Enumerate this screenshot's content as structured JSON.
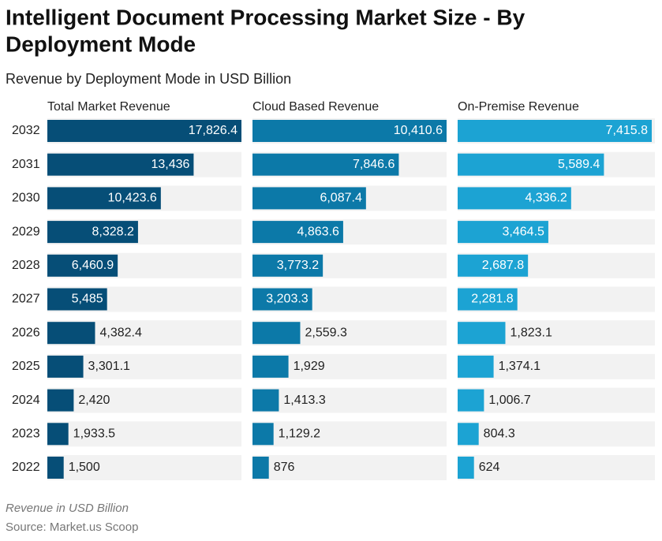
{
  "chart_data": {
    "type": "bar",
    "title": "Intelligent Document Processing Market Size - By Deployment Mode",
    "subtitle": "Revenue by Deployment Mode in USD Billion",
    "caption": "Revenue in USD Billion",
    "source": "Source: Market.us Scoop",
    "categories": [
      "2032",
      "2031",
      "2030",
      "2029",
      "2028",
      "2027",
      "2026",
      "2025",
      "2024",
      "2023",
      "2022"
    ],
    "series": [
      {
        "name": "Total Market Revenue",
        "color": "#064e77",
        "values": [
          17826.4,
          13436,
          10423.6,
          8328.2,
          6460.9,
          5485,
          4382.4,
          3301.1,
          2420,
          1933.5,
          1500
        ],
        "value_labels": [
          "17,826.4",
          "13,436",
          "10,423.6",
          "8,328.2",
          "6,460.9",
          "5,485",
          "4,382.4",
          "3,301.1",
          "2,420",
          "1,933.5",
          "1,500"
        ]
      },
      {
        "name": "Cloud Based Revenue",
        "color": "#0c79a8",
        "values": [
          10410.6,
          7846.6,
          6087.4,
          4863.6,
          3773.2,
          3203.3,
          2559.3,
          1929,
          1413.3,
          1129.2,
          876
        ],
        "value_labels": [
          "10,410.6",
          "7,846.6",
          "6,087.4",
          "4,863.6",
          "3,773.2",
          "3,203.3",
          "2,559.3",
          "1,929",
          "1,413.3",
          "1,129.2",
          "876"
        ]
      },
      {
        "name": "On-Premise Revenue",
        "color": "#1ca3d3",
        "values": [
          7415.8,
          5589.4,
          4336.2,
          3464.5,
          2687.8,
          2281.8,
          1823.1,
          1374.1,
          1006.7,
          804.3,
          624
        ],
        "value_labels": [
          "7,415.8",
          "5,589.4",
          "4,336.2",
          "3,464.5",
          "2,687.8",
          "2,281.8",
          "1,823.1",
          "1,374.1",
          "1,006.7",
          "804.3",
          "624"
        ]
      }
    ]
  }
}
